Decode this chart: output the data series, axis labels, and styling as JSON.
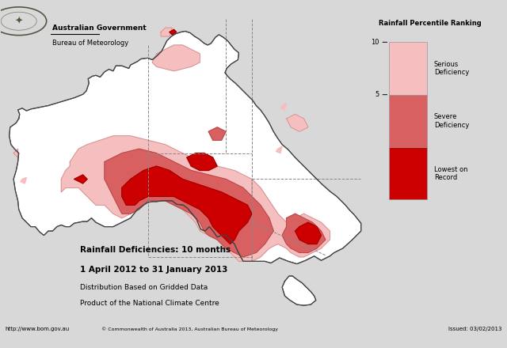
{
  "title": "Rainfall Deficiencies: 10 months",
  "subtitle": "1 April 2012 to 31 January 2013",
  "subtitle2": "Distribution Based on Gridded Data",
  "subtitle3": "Product of the National Climate Centre",
  "gov_text": "Australian Government",
  "bureau_text": "Bureau of Meteorology",
  "legend_title": "Rainfall Percentile Ranking",
  "bg_color": "#d8d8d8",
  "map_bg": "#ffffff",
  "copyright_text": "© Commonwealth of Australia 2013, Australian Bureau of Meteorology",
  "url_text": "http://www.bom.gov.au",
  "issued_text": "Issued: 03/02/2013",
  "serious_color": "#F5BFBF",
  "severe_color": "#D96060",
  "lowest_color": "#CC0000",
  "coast_color": "#444444",
  "border_color": "#888888"
}
